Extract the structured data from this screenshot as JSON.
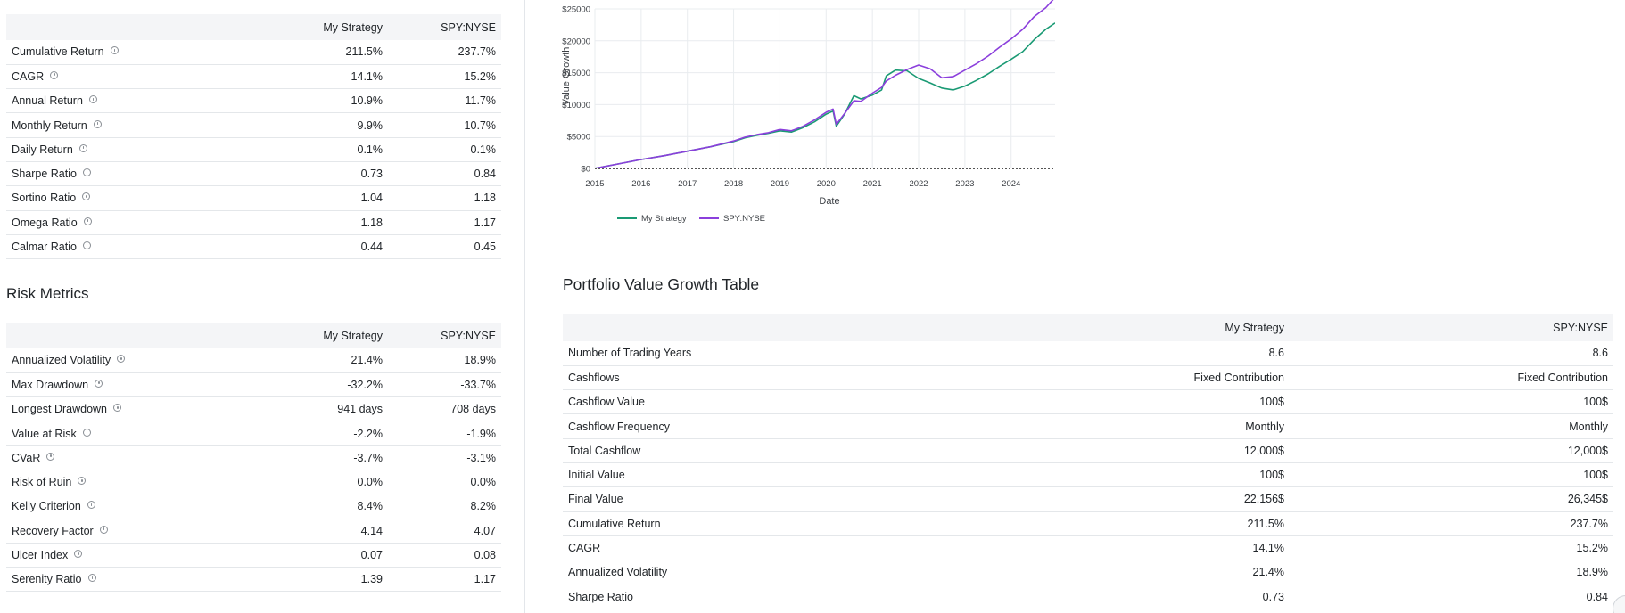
{
  "performance_table": {
    "headers": [
      "",
      "My Strategy",
      "SPY:NYSE"
    ],
    "rows": [
      {
        "label": "Cumulative Return",
        "a": "211.5%",
        "b": "237.7%"
      },
      {
        "label": "CAGR",
        "a": "14.1%",
        "b": "15.2%"
      },
      {
        "label": "Annual Return",
        "a": "10.9%",
        "b": "11.7%"
      },
      {
        "label": "Monthly Return",
        "a": "9.9%",
        "b": "10.7%"
      },
      {
        "label": "Daily Return",
        "a": "0.1%",
        "b": "0.1%"
      },
      {
        "label": "Sharpe Ratio",
        "a": "0.73",
        "b": "0.84"
      },
      {
        "label": "Sortino Ratio",
        "a": "1.04",
        "b": "1.18"
      },
      {
        "label": "Omega Ratio",
        "a": "1.18",
        "b": "1.17"
      },
      {
        "label": "Calmar Ratio",
        "a": "0.44",
        "b": "0.45"
      }
    ]
  },
  "risk_section": {
    "title": "Risk Metrics",
    "headers": [
      "",
      "My Strategy",
      "SPY:NYSE"
    ],
    "rows": [
      {
        "label": "Annualized Volatility",
        "a": "21.4%",
        "b": "18.9%"
      },
      {
        "label": "Max Drawdown",
        "a": "-32.2%",
        "b": "-33.7%"
      },
      {
        "label": "Longest Drawdown",
        "a": "941 days",
        "b": "708 days"
      },
      {
        "label": "Value at Risk",
        "a": "-2.2%",
        "b": "-1.9%"
      },
      {
        "label": "CVaR",
        "a": "-3.7%",
        "b": "-3.1%"
      },
      {
        "label": "Risk of Ruin",
        "a": "0.0%",
        "b": "0.0%"
      },
      {
        "label": "Kelly Criterion",
        "a": "8.4%",
        "b": "8.2%"
      },
      {
        "label": "Recovery Factor",
        "a": "4.14",
        "b": "4.07"
      },
      {
        "label": "Ulcer Index",
        "a": "0.07",
        "b": "0.08"
      },
      {
        "label": "Serenity Ratio",
        "a": "1.39",
        "b": "1.17"
      }
    ]
  },
  "chart_data": {
    "type": "line",
    "title": "",
    "xlabel": "Date",
    "ylabel": "Value Growth",
    "xlim": [
      2015.0,
      2024.95
    ],
    "ylim": [
      0,
      25000
    ],
    "x_ticks": [
      "2015",
      "2016",
      "2017",
      "2018",
      "2019",
      "2020",
      "2021",
      "2022",
      "2023",
      "2024"
    ],
    "y_ticks": [
      "$0",
      "$5000",
      "$10000",
      "$15000",
      "$20000",
      "$25000"
    ],
    "y_tick_values": [
      0,
      5000,
      10000,
      15000,
      20000,
      25000
    ],
    "grid": true,
    "legend_position": "bottom-left",
    "x": [
      2015.0,
      2015.5,
      2016.0,
      2016.5,
      2017.0,
      2017.5,
      2018.0,
      2018.25,
      2018.5,
      2018.75,
      2019.0,
      2019.25,
      2019.5,
      2019.75,
      2020.0,
      2020.15,
      2020.22,
      2020.4,
      2020.6,
      2020.75,
      2021.0,
      2021.2,
      2021.3,
      2021.5,
      2021.75,
      2022.0,
      2022.25,
      2022.5,
      2022.75,
      2023.0,
      2023.25,
      2023.5,
      2023.75,
      2024.0,
      2024.25,
      2024.5,
      2024.75,
      2024.95
    ],
    "series": [
      {
        "name": "My Strategy",
        "color": "#1a9a74",
        "values": [
          0,
          700,
          1400,
          2000,
          2700,
          3400,
          4200,
          4800,
          5200,
          5500,
          5900,
          5700,
          6400,
          7300,
          8500,
          9000,
          6600,
          8500,
          11400,
          10900,
          11500,
          12300,
          14500,
          15400,
          15300,
          14100,
          13400,
          12600,
          12300,
          12900,
          13800,
          14800,
          16000,
          17100,
          18300,
          20200,
          21800,
          22800
        ]
      },
      {
        "name": "SPY:NYSE",
        "color": "#8b3fdc",
        "values": [
          0,
          700,
          1400,
          2000,
          2700,
          3400,
          4300,
          4900,
          5300,
          5600,
          6100,
          5900,
          6600,
          7600,
          8800,
          9300,
          6900,
          8600,
          10600,
          10500,
          11800,
          12700,
          13700,
          14600,
          15500,
          16200,
          15600,
          14200,
          14400,
          15400,
          16400,
          17600,
          19000,
          20300,
          21800,
          23800,
          25200,
          26800
        ]
      }
    ]
  },
  "growth_section": {
    "title": "Portfolio Value Growth Table",
    "headers": [
      "",
      "My Strategy",
      "SPY:NYSE"
    ],
    "rows": [
      {
        "label": "Number of Trading Years",
        "a": "8.6",
        "b": "8.6"
      },
      {
        "label": "Cashflows",
        "a": "Fixed Contribution",
        "b": "Fixed Contribution"
      },
      {
        "label": "Cashflow Value",
        "a": "100$",
        "b": "100$"
      },
      {
        "label": "Cashflow Frequency",
        "a": "Monthly",
        "b": "Monthly"
      },
      {
        "label": "Total Cashflow",
        "a": "12,000$",
        "b": "12,000$"
      },
      {
        "label": "Initial Value",
        "a": "100$",
        "b": "100$"
      },
      {
        "label": "Final Value",
        "a": "22,156$",
        "b": "26,345$"
      },
      {
        "label": "Cumulative Return",
        "a": "211.5%",
        "b": "237.7%"
      },
      {
        "label": "CAGR",
        "a": "14.1%",
        "b": "15.2%"
      },
      {
        "label": "Annualized Volatility",
        "a": "21.4%",
        "b": "18.9%"
      },
      {
        "label": "Sharpe Ratio",
        "a": "0.73",
        "b": "0.84"
      }
    ]
  }
}
